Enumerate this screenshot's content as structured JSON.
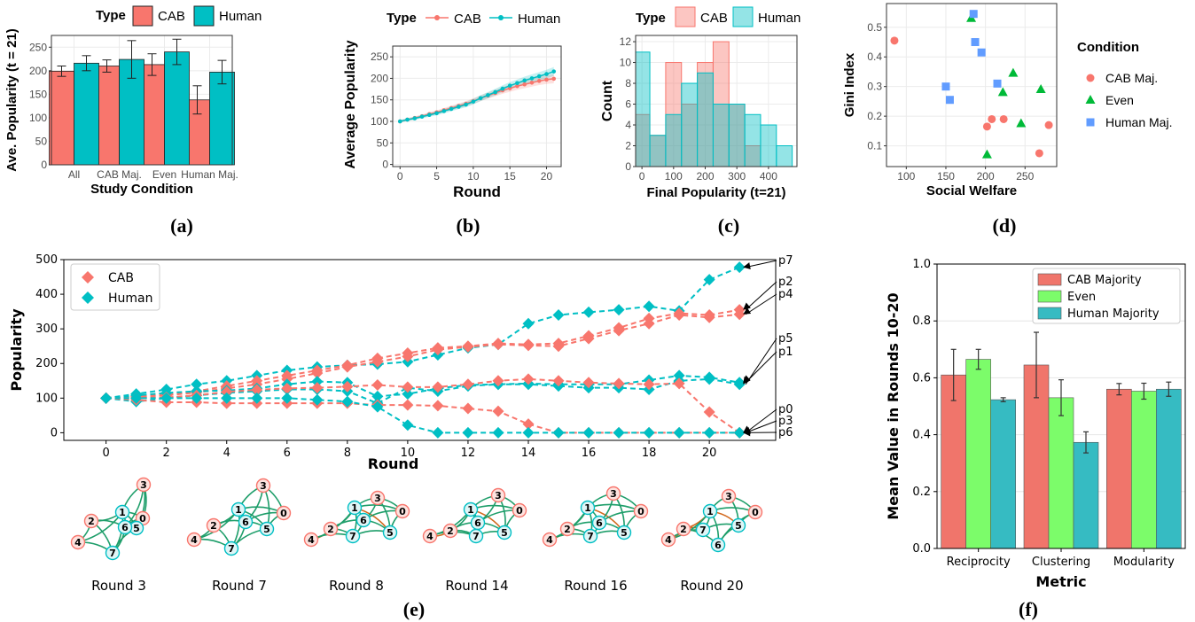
{
  "panel_labels": [
    "(a)",
    "(b)",
    "(c)",
    "(d)",
    "(e)",
    "(f)"
  ],
  "colors": {
    "cab": "#F8766D",
    "human": "#00BFC4",
    "human_dark": "#3AB5C0",
    "even": "#7CFC6A",
    "even_gg": "#00BA38",
    "human_maj_gg": "#619CFF",
    "net_edge": "#1E9E6A",
    "net_edge_alt": "#D2691E"
  },
  "chart_data": [
    {
      "id": "a",
      "type": "bar",
      "legend_title": "Type",
      "xlabel": "Study Condition",
      "ylabel": "Ave. Popularity (t = 21)",
      "categories": [
        "All",
        "CAB Maj.",
        "Even",
        "Human Maj."
      ],
      "ylim": [
        0,
        275
      ],
      "yticks": [
        0,
        50,
        100,
        150,
        200,
        250
      ],
      "series": [
        {
          "name": "CAB",
          "values": [
            199,
            210,
            213,
            138
          ],
          "errors": [
            11,
            13,
            23,
            30
          ]
        },
        {
          "name": "Human",
          "values": [
            216,
            224,
            240,
            197
          ],
          "errors": [
            16,
            40,
            27,
            25
          ]
        }
      ]
    },
    {
      "id": "b",
      "type": "line",
      "legend_title": "Type",
      "xlabel": "Round",
      "ylabel": "Average Popularity",
      "xlim": [
        -1,
        22
      ],
      "ylim": [
        -5,
        275
      ],
      "xticks": [
        0,
        5,
        10,
        15,
        20
      ],
      "yticks": [
        0,
        50,
        100,
        150,
        200,
        250
      ],
      "x": [
        0,
        1,
        2,
        3,
        4,
        5,
        6,
        7,
        8,
        9,
        10,
        11,
        12,
        13,
        14,
        15,
        16,
        17,
        18,
        19,
        20,
        21
      ],
      "series": [
        {
          "name": "CAB",
          "values": [
            100,
            104,
            108,
            112,
            117,
            121,
            126,
            131,
            136,
            141,
            147,
            154,
            160,
            166,
            172,
            177,
            182,
            186,
            190,
            194,
            197,
            199
          ]
        },
        {
          "name": "Human",
          "values": [
            100,
            104,
            107,
            111,
            115,
            119,
            124,
            129,
            134,
            139,
            146,
            154,
            161,
            168,
            176,
            183,
            189,
            195,
            200,
            205,
            210,
            216
          ]
        }
      ]
    },
    {
      "id": "c",
      "type": "histogram",
      "legend_title": "Type",
      "xlabel": "Final Popularity (t=21)",
      "ylabel": "Count",
      "xlim": [
        -20,
        490
      ],
      "ylim": [
        0,
        12.6
      ],
      "xticks": [
        0,
        100,
        200,
        300,
        400
      ],
      "yticks": [
        0,
        2,
        4,
        6,
        8,
        10,
        12
      ],
      "bin_edges": [
        -25,
        25,
        75,
        125,
        175,
        225,
        275,
        325,
        375,
        425,
        475
      ],
      "series": [
        {
          "name": "CAB",
          "counts": [
            5,
            3,
            10,
            6,
            10,
            12,
            6,
            2,
            0,
            0
          ]
        },
        {
          "name": "Human",
          "counts": [
            11,
            3,
            5,
            8,
            9,
            6,
            6,
            5,
            4,
            2
          ]
        }
      ]
    },
    {
      "id": "d",
      "type": "scatter",
      "legend_title": "Condition",
      "xlabel": "Social Welfare",
      "ylabel": "Gini Index",
      "xlim": [
        75,
        290
      ],
      "ylim": [
        0.03,
        0.58
      ],
      "xticks": [
        100,
        150,
        200,
        250
      ],
      "yticks": [
        0.1,
        0.2,
        0.3,
        0.4,
        0.5
      ],
      "series": [
        {
          "name": "CAB Maj.",
          "shape": "circle",
          "points": [
            [
              85,
              0.455
            ],
            [
              202,
              0.165
            ],
            [
              208,
              0.19
            ],
            [
              223,
              0.19
            ],
            [
              268,
              0.075
            ],
            [
              280,
              0.17
            ]
          ]
        },
        {
          "name": "Even",
          "shape": "triangle",
          "points": [
            [
              182,
              0.53
            ],
            [
              202,
              0.07
            ],
            [
              222,
              0.28
            ],
            [
              235,
              0.345
            ],
            [
              245,
              0.175
            ],
            [
              270,
              0.29
            ]
          ]
        },
        {
          "name": "Human Maj.",
          "shape": "square",
          "points": [
            [
              150,
              0.3
            ],
            [
              155,
              0.255
            ],
            [
              185,
              0.545
            ],
            [
              187,
              0.45
            ],
            [
              195,
              0.415
            ],
            [
              215,
              0.31
            ]
          ]
        }
      ]
    },
    {
      "id": "e",
      "type": "line",
      "xlabel": "Round",
      "ylabel": "Popularity",
      "xlim": [
        -1.4,
        22.2
      ],
      "ylim": [
        -22,
        500
      ],
      "xticks": [
        0,
        2,
        4,
        6,
        8,
        10,
        12,
        14,
        16,
        18,
        20
      ],
      "yticks": [
        0,
        100,
        200,
        300,
        400,
        500
      ],
      "legend": [
        "CAB",
        "Human"
      ],
      "end_labels": [
        "p7",
        "p2",
        "p4",
        "p5",
        "p1",
        "p0",
        "p3",
        "p6"
      ],
      "series": [
        {
          "name": "p7",
          "type": "Human",
          "values": [
            100,
            112,
            125,
            140,
            150,
            165,
            180,
            190,
            195,
            198,
            205,
            225,
            245,
            255,
            315,
            340,
            348,
            355,
            365,
            352,
            442,
            478
          ]
        },
        {
          "name": "p2",
          "type": "CAB",
          "values": [
            100,
            105,
            110,
            120,
            135,
            150,
            165,
            180,
            195,
            215,
            230,
            245,
            250,
            258,
            255,
            258,
            280,
            303,
            330,
            345,
            340,
            355
          ]
        },
        {
          "name": "p4",
          "type": "CAB",
          "values": [
            100,
            103,
            108,
            116,
            128,
            140,
            155,
            172,
            190,
            205,
            220,
            240,
            248,
            255,
            252,
            250,
            272,
            295,
            315,
            340,
            333,
            342
          ]
        },
        {
          "name": "p1",
          "type": "Human",
          "values": [
            100,
            90,
            100,
            108,
            115,
            120,
            125,
            125,
            120,
            85,
            130,
            120,
            135,
            140,
            140,
            135,
            130,
            130,
            125,
            150,
            155,
            140
          ]
        },
        {
          "name": "p5",
          "type": "Human",
          "values": [
            100,
            108,
            115,
            120,
            122,
            128,
            140,
            148,
            145,
            105,
            112,
            128,
            138,
            140,
            142,
            140,
            140,
            140,
            152,
            165,
            160,
            145
          ]
        },
        {
          "name": "p0",
          "type": "CAB",
          "values": [
            100,
            100,
            102,
            108,
            118,
            124,
            128,
            130,
            133,
            138,
            132,
            132,
            140,
            150,
            155,
            150,
            145,
            142,
            140,
            142,
            60,
            0
          ]
        },
        {
          "name": "p3",
          "type": "CAB",
          "values": [
            100,
            95,
            88,
            88,
            85,
            85,
            85,
            85,
            85,
            80,
            80,
            78,
            70,
            62,
            25,
            0,
            0,
            0,
            0,
            0,
            0,
            0
          ]
        },
        {
          "name": "p6",
          "type": "Human",
          "values": [
            100,
            100,
            100,
            100,
            100,
            100,
            100,
            95,
            90,
            75,
            22,
            0,
            0,
            0,
            0,
            0,
            0,
            0,
            0,
            0,
            0,
            0
          ]
        }
      ]
    },
    {
      "id": "f",
      "type": "bar",
      "xlabel": "Metric",
      "ylabel": "Mean Value in Rounds 10-20",
      "categories": [
        "Reciprocity",
        "Clustering",
        "Modularity"
      ],
      "ylim": [
        0.0,
        1.0
      ],
      "yticks": [
        0.0,
        0.2,
        0.4,
        0.6,
        0.8,
        1.0
      ],
      "series": [
        {
          "name": "CAB Majority",
          "values": [
            0.61,
            0.645,
            0.56
          ],
          "errors": [
            0.09,
            0.115,
            0.02
          ]
        },
        {
          "name": "Even",
          "values": [
            0.665,
            0.53,
            0.553
          ],
          "errors": [
            0.035,
            0.063,
            0.028
          ]
        },
        {
          "name": "Human Majority",
          "values": [
            0.523,
            0.373,
            0.56
          ],
          "errors": [
            0.007,
            0.037,
            0.025
          ]
        }
      ]
    }
  ],
  "networks": {
    "captions": [
      "Round 3",
      "Round 7",
      "Round 8",
      "Round 14",
      "Round 16",
      "Round 20"
    ],
    "node_labels": [
      "0",
      "1",
      "2",
      "3",
      "4",
      "5",
      "6",
      "7"
    ],
    "node_types": [
      "CAB",
      "Human",
      "CAB",
      "CAB",
      "CAB",
      "Human",
      "Human",
      "Human"
    ]
  }
}
